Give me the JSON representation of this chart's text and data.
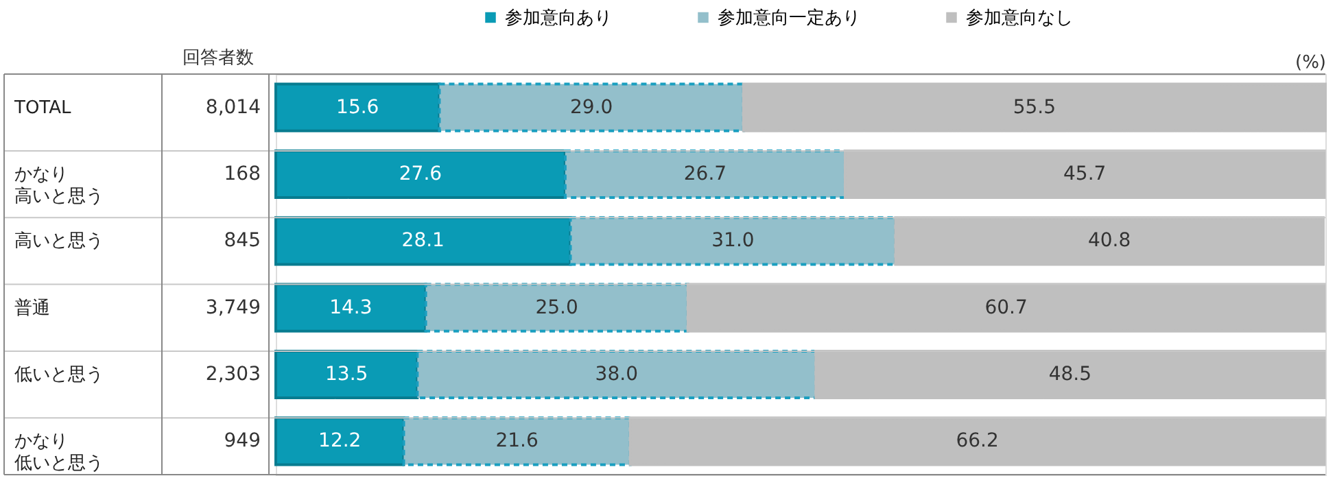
{
  "chart_data": {
    "type": "bar",
    "orientation": "horizontal",
    "stacked": true,
    "legend": "top",
    "grid": "y",
    "tick_labels": "y",
    "xlabel": "(%)",
    "categories": [
      "TOTAL",
      "かなり高いと思う",
      "高いと思う",
      "普通",
      "低いと思う",
      "かなり低いと思う"
    ],
    "series": [
      {
        "name": "参加意向あり",
        "color": "#0a9bb5",
        "values": [
          15.6,
          27.6,
          28.1,
          14.3,
          13.5,
          12.2
        ],
        "value_labels": [
          "15.6",
          "27.6",
          "28.1",
          "14.3",
          "13.5",
          "12.2"
        ]
      },
      {
        "name": "参加意向一定あり",
        "color": "#93bfcb",
        "line_style": "dashed",
        "values": [
          29.0,
          26.7,
          31.0,
          25.0,
          38.0,
          21.6
        ],
        "value_labels": [
          "29.0",
          "26.7",
          "31.0",
          "25.0",
          "38.0",
          "21.6"
        ]
      },
      {
        "name": "参加意向なし",
        "color": "#bfbfbf",
        "values": [
          55.5,
          45.7,
          40.8,
          60.7,
          48.5,
          66.2
        ],
        "value_labels": [
          "55.5",
          "45.7",
          "40.8",
          "60.7",
          "48.5",
          "66.2"
        ]
      }
    ],
    "annotations": [
      "回答者数",
      "8,014",
      "168",
      "845",
      "3,749",
      "2,303",
      "949"
    ]
  }
}
